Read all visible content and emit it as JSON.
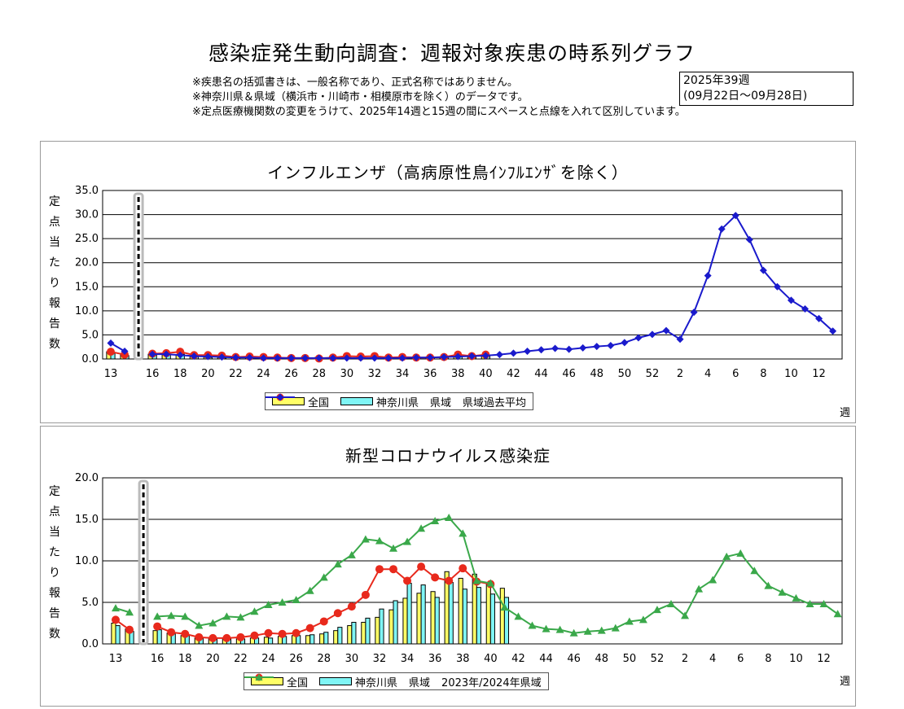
{
  "page": {
    "title": "感染症発生動向調査：週報対象疾患の時系列グラフ",
    "notes": [
      "※疾患名の括弧書きは、一般名称であり、正式名称ではありません。",
      "※神奈川県＆県域（横浜市・川崎市・相模原市を除く）のデータです。",
      "※定点医療機関数の変更をうけて、2025年14週と15週の間にスペースと点線を入れて区別しています。"
    ],
    "period": {
      "week": "2025年39週",
      "range": "(09月22日～09月28日)"
    }
  },
  "colors": {
    "national": "#ffff66",
    "kanagawa": "#7ff5f5",
    "prefecture": "#e8291c",
    "past_avg": "#1a1acc",
    "past_season": "#3aa84a",
    "grid": "#000000"
  },
  "chart_data": [
    {
      "id": "influenza",
      "type": "bar",
      "title": "インフルエンザ（高病原性鳥ｲﾝﾌﾙｴﾝｻﾞを除く）",
      "ylabel": "定点当たり報告数",
      "xlabel": "週",
      "ylim": [
        0,
        35
      ],
      "yticks": [
        "0.0",
        "5.0",
        "10.0",
        "15.0",
        "20.0",
        "25.0",
        "30.0",
        "35.0"
      ],
      "xticks": [
        "13",
        "16",
        "18",
        "20",
        "22",
        "24",
        "26",
        "28",
        "30",
        "32",
        "34",
        "36",
        "38",
        "40",
        "42",
        "44",
        "46",
        "48",
        "50",
        "52",
        "2",
        "4",
        "6",
        "8",
        "10",
        "12"
      ],
      "grid": true,
      "legend_position": "bottom",
      "series": [
        {
          "name": "全国",
          "kind": "bar",
          "color_key": "national",
          "values": [
            1.5,
            1.0,
            null,
            1.0,
            0.9,
            0.8,
            0.5,
            0.4,
            0.3,
            0.3,
            0.3,
            0.3,
            0.3,
            0.3,
            0.3,
            0.3,
            0.3,
            0.3,
            0.3,
            0.3,
            0.3,
            0.3,
            0.3,
            0.4,
            0.4,
            0.5,
            0.6,
            0.7
          ]
        },
        {
          "name": "神奈川県",
          "kind": "bar",
          "color_key": "kanagawa",
          "values": [
            1.2,
            0.7,
            null,
            0.8,
            0.9,
            1.0,
            0.5,
            0.3,
            0.2,
            0.2,
            0.3,
            0.2,
            0.2,
            0.2,
            0.1,
            0.2,
            0.1,
            0.3,
            0.3,
            0.3,
            0.2,
            0.2,
            0.2,
            0.3,
            0.3,
            0.5,
            0.7,
            0.8
          ]
        },
        {
          "name": "県域",
          "kind": "line",
          "color_key": "prefecture",
          "values": [
            1.5,
            0.9,
            null,
            1.1,
            1.2,
            1.5,
            0.8,
            0.8,
            0.7,
            0.4,
            0.5,
            0.4,
            0.3,
            0.2,
            0.2,
            0.1,
            0.3,
            0.6,
            0.5,
            0.6,
            0.3,
            0.4,
            0.3,
            0.3,
            0.4,
            0.9,
            0.6,
            0.9
          ]
        },
        {
          "name": "県域過去平均",
          "kind": "line",
          "color_key": "past_avg",
          "values": [
            3.3,
            1.6,
            null,
            1.0,
            1.0,
            0.8,
            0.6,
            0.5,
            0.4,
            0.3,
            0.3,
            0.2,
            0.2,
            0.2,
            0.2,
            0.2,
            0.2,
            0.2,
            0.2,
            0.2,
            0.2,
            0.2,
            0.3,
            0.3,
            0.4,
            0.5,
            0.6,
            0.7,
            0.9,
            1.2,
            1.6,
            1.9,
            2.2,
            2.0,
            2.3,
            2.6,
            2.8,
            3.4,
            4.4,
            5.1,
            5.9,
            4.1,
            9.7,
            17.3,
            27.0,
            29.8,
            24.8,
            18.4,
            15.0,
            12.2,
            10.4,
            8.4,
            5.8
          ]
        }
      ]
    },
    {
      "id": "covid",
      "type": "bar",
      "title": "新型コロナウイルス感染症",
      "ylabel": "定点当たり報告数",
      "xlabel": "週",
      "ylim": [
        0,
        20
      ],
      "yticks": [
        "0.0",
        "5.0",
        "10.0",
        "15.0",
        "20.0"
      ],
      "xticks": [
        "13",
        "16",
        "18",
        "20",
        "22",
        "24",
        "26",
        "28",
        "30",
        "32",
        "34",
        "36",
        "38",
        "40",
        "42",
        "44",
        "46",
        "48",
        "50",
        "52",
        "2",
        "4",
        "6",
        "8",
        "10",
        "12"
      ],
      "grid": true,
      "legend_position": "bottom",
      "series": [
        {
          "name": "全国",
          "kind": "bar",
          "color_key": "national",
          "values": [
            2.5,
            1.8,
            null,
            1.6,
            1.3,
            1.0,
            0.7,
            0.7,
            0.6,
            0.6,
            0.7,
            0.8,
            0.9,
            1.0,
            1.0,
            1.2,
            1.6,
            2.2,
            2.6,
            3.2,
            4.1,
            5.5,
            6.1,
            6.3,
            8.7,
            7.9,
            8.4,
            7.2,
            6.7
          ]
        },
        {
          "name": "神奈川県",
          "kind": "bar",
          "color_key": "kanagawa",
          "values": [
            2.2,
            1.5,
            null,
            1.7,
            1.2,
            1.0,
            0.7,
            0.6,
            0.6,
            0.6,
            0.7,
            0.7,
            0.9,
            1.0,
            1.1,
            1.4,
            2.0,
            2.6,
            3.1,
            4.2,
            5.2,
            7.3,
            7.1,
            5.6,
            7.4,
            6.6,
            6.8,
            6.0,
            5.6
          ]
        },
        {
          "name": "県域",
          "kind": "line",
          "color_key": "prefecture",
          "values": [
            2.9,
            1.7,
            null,
            2.1,
            1.4,
            1.2,
            0.8,
            0.7,
            0.7,
            0.8,
            1.0,
            1.3,
            1.2,
            1.3,
            1.9,
            2.7,
            3.7,
            4.5,
            5.9,
            9.0,
            9.0,
            7.6,
            9.3,
            8.0,
            7.6,
            9.1,
            7.5,
            7.2
          ]
        },
        {
          "name": "2023年/2024年県域",
          "kind": "line",
          "color_key": "past_season",
          "values": [
            4.3,
            3.8,
            null,
            3.3,
            3.4,
            3.3,
            2.2,
            2.5,
            3.3,
            3.2,
            3.9,
            4.7,
            5.0,
            5.3,
            6.4,
            8.0,
            9.6,
            10.7,
            12.6,
            12.4,
            11.5,
            12.3,
            13.9,
            14.8,
            15.2,
            13.3,
            7.6,
            7.3,
            4.4,
            3.3,
            2.2,
            1.8,
            1.7,
            1.3,
            1.5,
            1.6,
            1.9,
            2.7,
            2.9,
            4.1,
            4.8,
            3.4,
            6.6,
            7.7,
            10.5,
            10.9,
            8.8,
            7.0,
            6.2,
            5.5,
            4.8,
            4.8,
            3.6
          ]
        }
      ]
    }
  ]
}
